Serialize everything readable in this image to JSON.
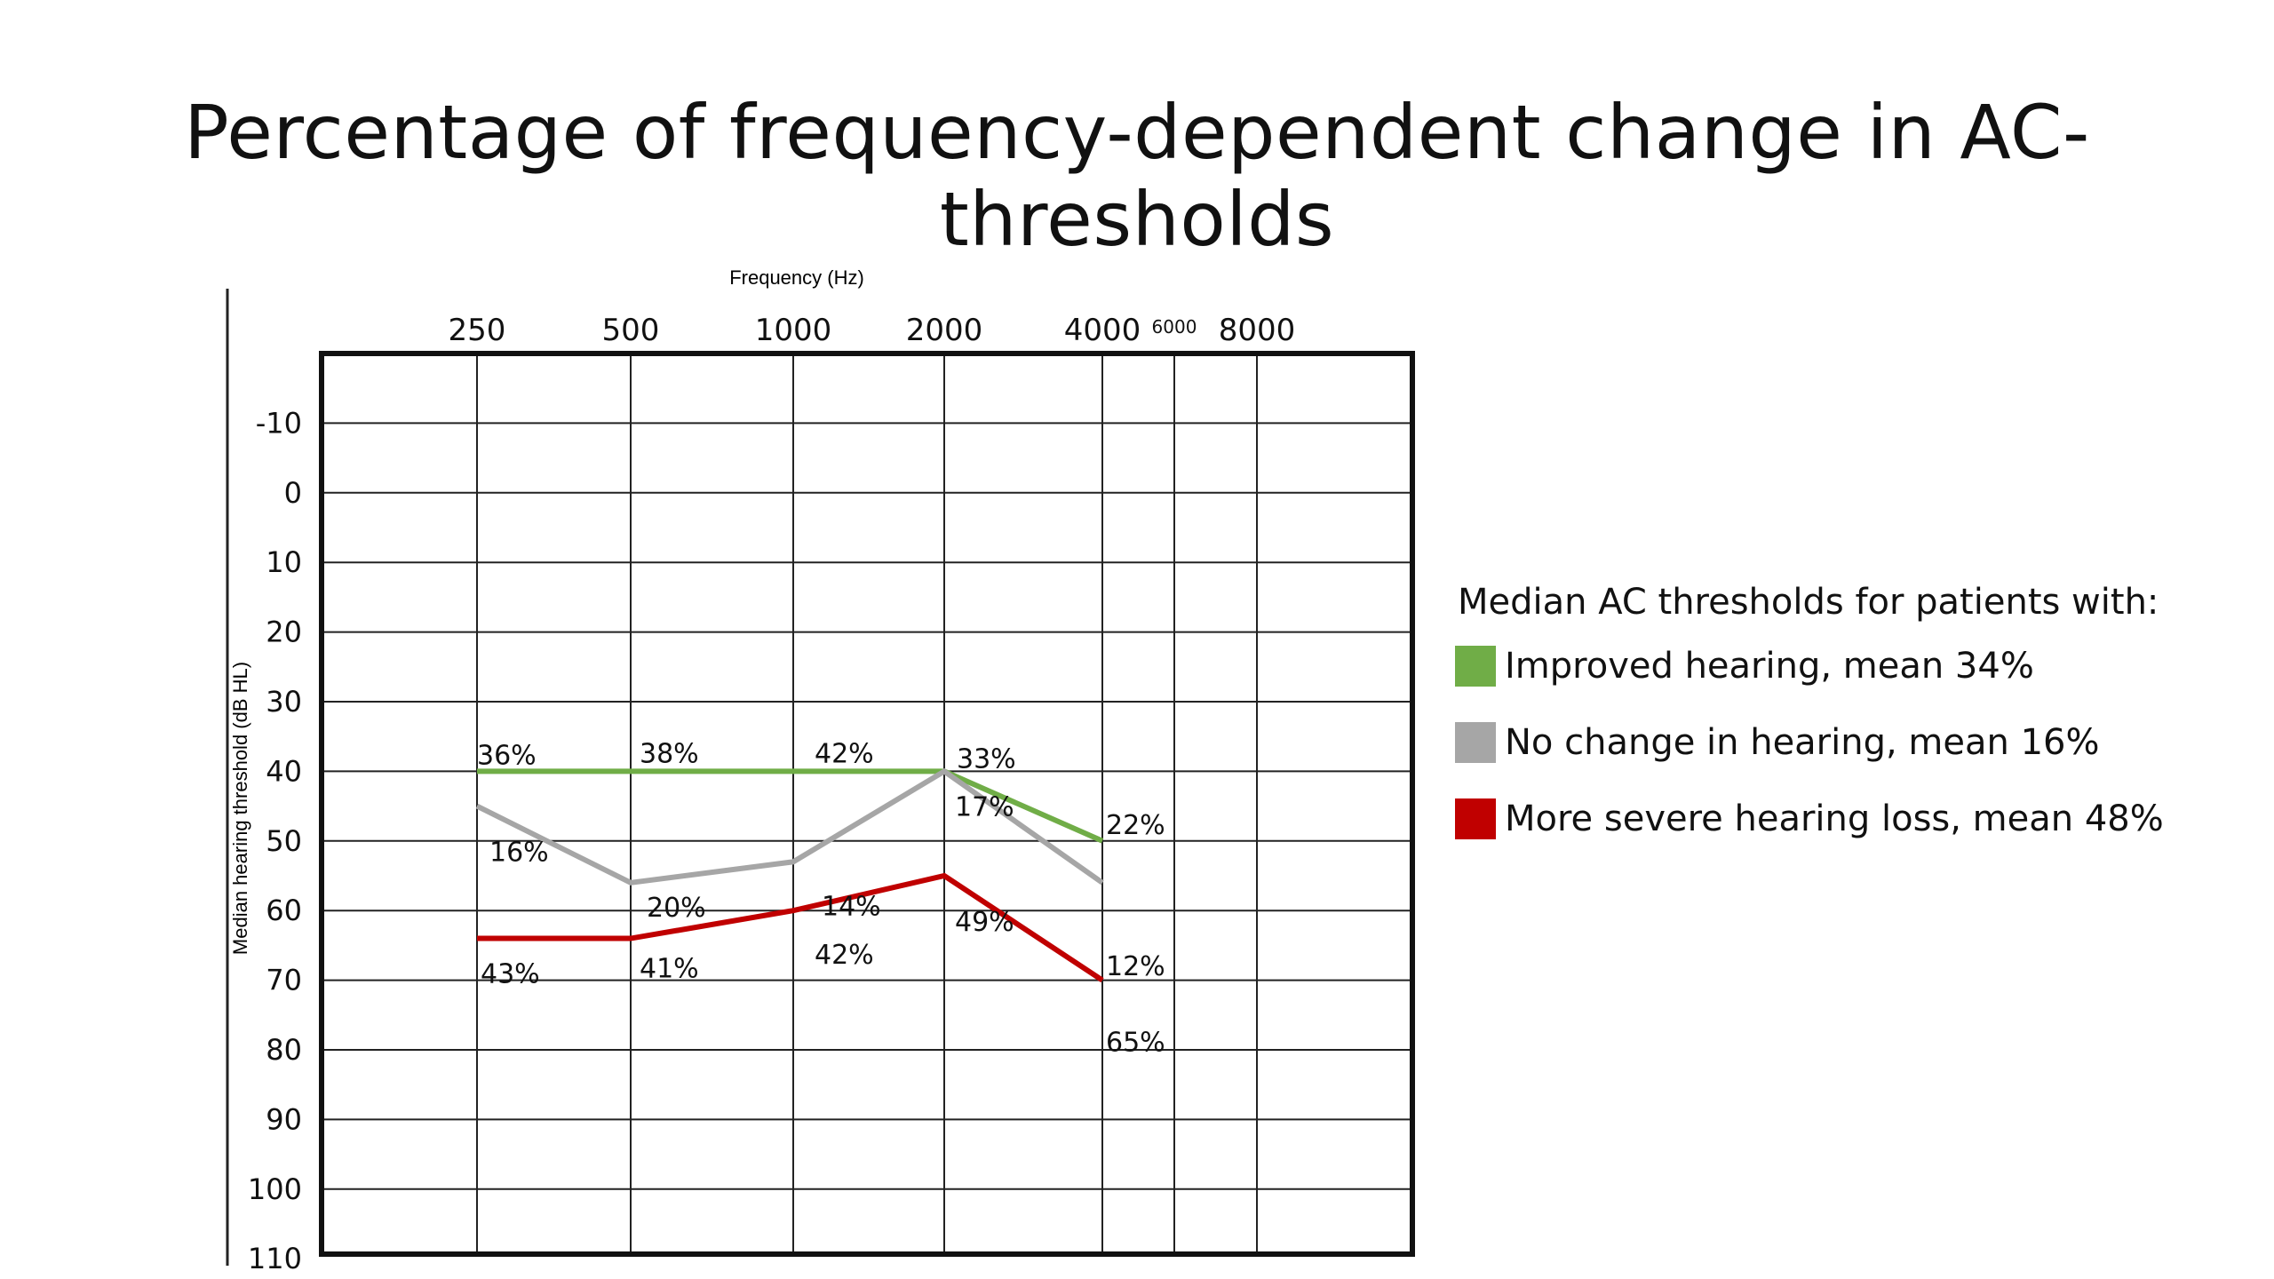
{
  "title": "Percentage of frequency-dependent change in AC-thresholds",
  "chart_data": {
    "type": "line",
    "title": "Percentage of frequency-dependent change in AC-thresholds",
    "xlabel": "Frequency (Hz)",
    "ylabel": "Median hearing threshold (dB HL)",
    "x_tick_labels": [
      "250",
      "500",
      "1000",
      "2000",
      "4000",
      "6000",
      "8000"
    ],
    "y_ticks": [
      -10,
      0,
      10,
      20,
      30,
      40,
      50,
      60,
      70,
      80,
      90,
      100,
      110
    ],
    "ylim": [
      -20,
      110
    ],
    "y_inverted": true,
    "x_axis_position": "top",
    "grid": true,
    "legend_title": "Median AC thresholds for patients with:",
    "legend_position": "right",
    "series": [
      {
        "name": "Improved hearing, mean 34%",
        "color": "#70ad47",
        "x": [
          "250",
          "500",
          "1000",
          "2000",
          "4000"
        ],
        "values": [
          40,
          40,
          40,
          40,
          50
        ],
        "labels": [
          "36%",
          "38%",
          "42%",
          "33%",
          "22%"
        ]
      },
      {
        "name": "No change in hearing, mean 16%",
        "color": "#a6a6a6",
        "x": [
          "250",
          "500",
          "1000",
          "2000",
          "4000"
        ],
        "values": [
          45,
          56,
          53,
          40,
          56
        ],
        "labels": [
          "16%",
          "20%",
          "14%",
          "17%",
          "12%"
        ]
      },
      {
        "name": "More severe hearing loss, mean 48%",
        "color": "#c00000",
        "x": [
          "250",
          "500",
          "1000",
          "2000",
          "4000"
        ],
        "values": [
          64,
          64,
          60,
          55,
          70
        ],
        "labels": [
          "43%",
          "41%",
          "42%",
          "49%",
          "65%"
        ]
      }
    ]
  }
}
